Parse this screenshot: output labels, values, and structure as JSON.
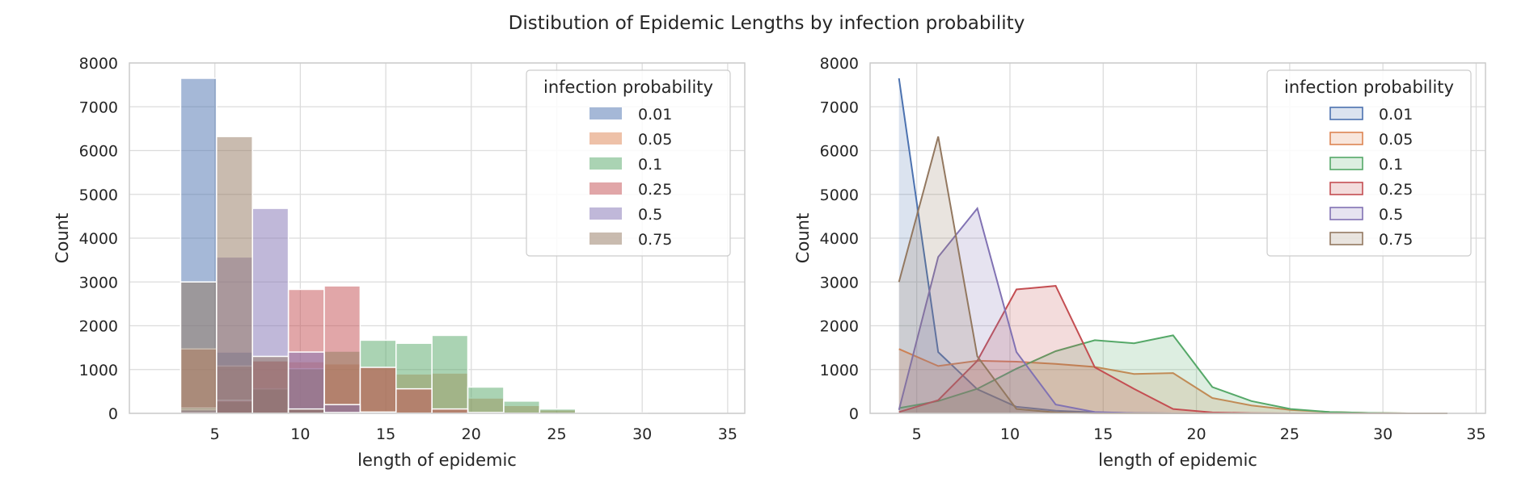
{
  "figure": {
    "title": "Distibution of Epidemic Lengths by infection probability"
  },
  "chart_data": [
    {
      "type": "histogram",
      "style": "overlaid-bars",
      "xlabel": "length of epidemic",
      "ylabel": "Count",
      "xlim": [
        0,
        36
      ],
      "ylim": [
        0,
        8000
      ],
      "xticks": [
        5,
        10,
        15,
        20,
        25,
        30,
        35
      ],
      "yticks": [
        0,
        1000,
        2000,
        3000,
        4000,
        5000,
        6000,
        7000,
        8000
      ],
      "grid": true,
      "legend": {
        "title": "infection probability",
        "placement": "top-right"
      },
      "bin_edges": [
        3,
        5.1,
        7.2,
        9.3,
        11.4,
        13.5,
        15.6,
        17.7,
        19.8,
        21.9,
        24,
        26.1,
        28.2,
        30.3,
        32.4,
        34.5
      ],
      "series": [
        {
          "name": "0.01",
          "color": "#4c72b0",
          "values": [
            7650,
            1400,
            550,
            150,
            60,
            20,
            5,
            0,
            0,
            0,
            0,
            0,
            0,
            0,
            0
          ]
        },
        {
          "name": "0.05",
          "color": "#dd8452",
          "values": [
            1470,
            1080,
            1200,
            1180,
            1130,
            1060,
            900,
            920,
            350,
            180,
            80,
            30,
            10,
            0,
            0
          ]
        },
        {
          "name": "0.1",
          "color": "#55a868",
          "values": [
            120,
            280,
            560,
            1020,
            1420,
            1670,
            1600,
            1780,
            600,
            280,
            100,
            30,
            10,
            0,
            0
          ]
        },
        {
          "name": "0.25",
          "color": "#c44e52",
          "values": [
            30,
            300,
            1200,
            2830,
            2910,
            1050,
            560,
            100,
            20,
            5,
            0,
            0,
            0,
            0,
            0
          ]
        },
        {
          "name": "0.5",
          "color": "#8172b3",
          "values": [
            80,
            3570,
            4680,
            1400,
            200,
            30,
            5,
            0,
            0,
            0,
            0,
            0,
            0,
            0,
            0
          ]
        },
        {
          "name": "0.75",
          "color": "#937860",
          "values": [
            3000,
            6320,
            1300,
            100,
            20,
            0,
            0,
            0,
            0,
            0,
            0,
            0,
            0,
            0,
            0
          ]
        }
      ]
    },
    {
      "type": "histogram",
      "style": "polygon-step-fill",
      "xlabel": "length of epidemic",
      "ylabel": "Count",
      "xlim": [
        2.5,
        35.5
      ],
      "ylim": [
        0,
        8000
      ],
      "xticks": [
        5,
        10,
        15,
        20,
        25,
        30,
        35
      ],
      "yticks": [
        0,
        1000,
        2000,
        3000,
        4000,
        5000,
        6000,
        7000,
        8000
      ],
      "grid": true,
      "legend": {
        "title": "infection probability",
        "placement": "top-right"
      },
      "x": [
        4.05,
        6.15,
        8.25,
        10.35,
        12.45,
        14.55,
        16.65,
        18.75,
        20.85,
        22.95,
        25.05,
        27.15,
        29.25,
        31.35,
        33.45
      ],
      "series": [
        {
          "name": "0.01",
          "color": "#4c72b0",
          "values": [
            7650,
            1400,
            550,
            150,
            60,
            20,
            5,
            0,
            0,
            0,
            0,
            0,
            0,
            0,
            0
          ]
        },
        {
          "name": "0.05",
          "color": "#dd8452",
          "values": [
            1470,
            1080,
            1200,
            1180,
            1130,
            1060,
            900,
            920,
            350,
            180,
            80,
            30,
            10,
            0,
            0
          ]
        },
        {
          "name": "0.1",
          "color": "#55a868",
          "values": [
            120,
            280,
            560,
            1020,
            1420,
            1670,
            1600,
            1780,
            600,
            280,
            100,
            30,
            10,
            0,
            0
          ]
        },
        {
          "name": "0.25",
          "color": "#c44e52",
          "values": [
            30,
            300,
            1200,
            2830,
            2910,
            1050,
            560,
            100,
            20,
            5,
            0,
            0,
            0,
            0,
            0
          ]
        },
        {
          "name": "0.5",
          "color": "#8172b3",
          "values": [
            80,
            3570,
            4680,
            1400,
            200,
            30,
            5,
            0,
            0,
            0,
            0,
            0,
            0,
            0,
            0
          ]
        },
        {
          "name": "0.75",
          "color": "#937860",
          "values": [
            3000,
            6320,
            1300,
            100,
            20,
            0,
            0,
            0,
            0,
            0,
            0,
            0,
            0,
            0,
            0
          ]
        }
      ]
    }
  ]
}
